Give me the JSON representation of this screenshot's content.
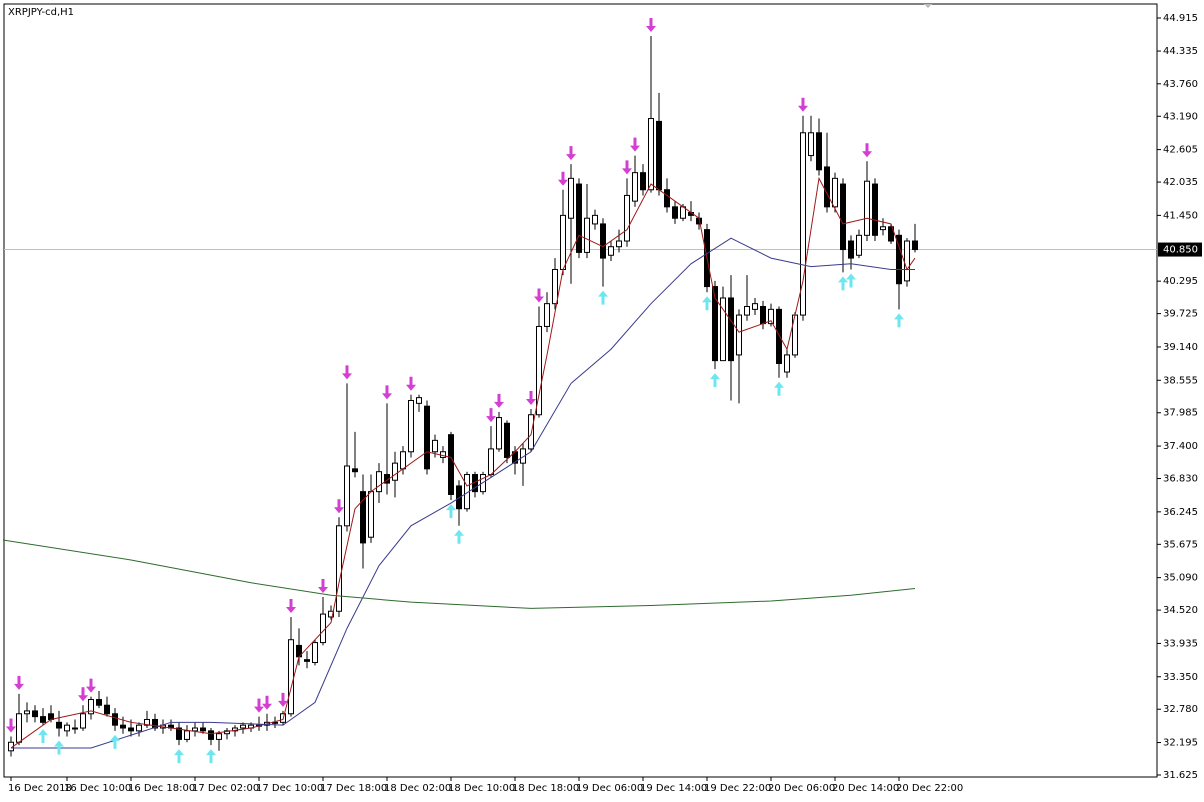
{
  "chart_data": {
    "type": "candlestick",
    "title": "XRPJPY-cd,H1",
    "categories": [
      "16 Dec 2018",
      null,
      null,
      null,
      null,
      null,
      null,
      "16 Dec 10:00",
      null,
      null,
      null,
      null,
      null,
      null,
      null,
      "16 Dec 18:00",
      null,
      null,
      null,
      null,
      null,
      null,
      null,
      "17 Dec 02:00",
      null,
      null,
      null,
      null,
      null,
      null,
      null,
      "17 Dec 10:00",
      null,
      null,
      null,
      null,
      null,
      null,
      null,
      "17 Dec 18:00",
      null,
      null,
      null,
      null,
      null,
      null,
      null,
      "18 Dec 02:00",
      null,
      null,
      null,
      null,
      null,
      null,
      null,
      "18 Dec 10:00",
      null,
      null,
      null,
      null,
      null,
      null,
      null,
      "18 Dec 18:00",
      null,
      null,
      null,
      null,
      null,
      null,
      null,
      "19 Dec 06:00",
      null,
      null,
      null,
      null,
      null,
      null,
      null,
      "19 Dec 14:00",
      null,
      null,
      null,
      null,
      null,
      null,
      null,
      "19 Dec 22:00",
      null,
      null,
      null,
      null,
      null,
      null,
      null,
      "20 Dec 06:00",
      null,
      null,
      null,
      null,
      null,
      null,
      null,
      "20 Dec 14:00",
      null,
      null,
      null,
      null,
      null,
      null,
      null,
      "20 Dec 22:00",
      null,
      null
    ],
    "open": [
      32.05,
      32.2,
      32.7,
      32.75,
      32.65,
      32.7,
      32.55,
      32.4,
      32.45,
      32.45,
      32.7,
      32.95,
      32.85,
      32.7,
      32.5,
      32.45,
      32.4,
      32.5,
      32.6,
      32.45,
      32.5,
      32.45,
      32.25,
      32.4,
      32.45,
      32.4,
      32.25,
      32.35,
      32.4,
      32.45,
      32.45,
      32.5,
      32.5,
      32.55,
      32.55,
      32.7,
      33.9,
      33.65,
      33.6,
      33.95,
      34.4,
      34.5,
      36.0,
      37.0,
      36.6,
      35.8,
      36.6,
      36.9,
      36.8,
      37.0,
      37.3,
      38.15,
      38.1,
      37.3,
      37.2,
      37.6,
      36.7,
      36.3,
      36.9,
      36.6,
      36.9,
      37.35,
      37.8,
      37.3,
      37.1,
      37.35,
      37.95,
      39.5,
      39.9,
      40.5,
      41.4,
      42.0,
      40.8,
      41.3,
      41.3,
      40.75,
      40.9,
      41.0,
      41.7,
      42.2,
      41.9,
      43.1,
      41.9,
      41.6,
      41.4,
      41.5,
      41.4,
      41.2,
      40.2,
      38.9,
      40.0,
      39.0,
      39.7,
      39.8,
      39.85,
      39.55,
      39.8,
      38.7,
      39.0,
      39.7,
      42.5,
      42.9,
      42.3,
      41.6,
      42.0,
      41.0,
      40.75,
      41.1,
      42.0,
      41.2,
      41.25,
      41.1,
      40.3,
      41.0
    ],
    "high": [
      32.3,
      33.05,
      32.9,
      32.85,
      32.8,
      32.85,
      32.75,
      32.55,
      32.6,
      32.85,
      33.0,
      33.1,
      33.0,
      32.8,
      32.65,
      32.6,
      32.55,
      32.75,
      32.7,
      32.6,
      32.6,
      32.55,
      32.5,
      32.55,
      32.55,
      32.45,
      32.4,
      32.45,
      32.5,
      32.55,
      32.55,
      32.65,
      32.7,
      32.65,
      32.75,
      34.4,
      34.2,
      33.8,
      34.0,
      34.75,
      34.6,
      36.15,
      38.5,
      37.65,
      36.9,
      36.9,
      37.1,
      38.15,
      37.3,
      37.4,
      38.3,
      38.3,
      38.2,
      37.6,
      37.4,
      37.65,
      36.8,
      36.95,
      36.95,
      36.95,
      37.75,
      38.0,
      37.85,
      37.4,
      37.45,
      38.05,
      39.85,
      40.1,
      40.7,
      41.9,
      42.35,
      42.1,
      42.0,
      41.55,
      41.4,
      41.0,
      41.2,
      42.1,
      42.5,
      42.35,
      44.6,
      43.6,
      42.1,
      41.7,
      41.65,
      41.7,
      41.5,
      41.3,
      40.3,
      40.2,
      40.4,
      39.8,
      40.4,
      40.0,
      39.95,
      39.9,
      39.85,
      39.1,
      39.75,
      43.2,
      43.2,
      43.15,
      42.9,
      42.2,
      42.1,
      41.1,
      41.2,
      42.4,
      42.1,
      41.4,
      41.3,
      41.2,
      41.05,
      41.3
    ],
    "low": [
      31.95,
      32.15,
      32.55,
      32.55,
      32.5,
      32.55,
      32.3,
      32.3,
      32.35,
      32.4,
      32.6,
      32.8,
      32.65,
      32.4,
      32.35,
      32.3,
      32.3,
      32.45,
      32.4,
      32.35,
      32.4,
      32.15,
      32.2,
      32.3,
      32.35,
      32.15,
      32.05,
      32.25,
      32.3,
      32.35,
      32.38,
      32.4,
      32.4,
      32.45,
      32.5,
      32.65,
      33.55,
      33.5,
      33.55,
      33.9,
      34.35,
      34.4,
      35.9,
      36.85,
      35.25,
      35.7,
      36.4,
      36.55,
      36.5,
      36.9,
      37.2,
      38.0,
      36.9,
      37.2,
      37.1,
      36.45,
      36.0,
      36.25,
      36.5,
      36.55,
      36.85,
      37.3,
      37.1,
      36.9,
      36.7,
      37.3,
      37.9,
      39.4,
      39.8,
      40.4,
      40.25,
      40.7,
      40.7,
      41.2,
      40.2,
      40.65,
      40.8,
      40.9,
      41.6,
      41.8,
      41.85,
      41.8,
      41.5,
      41.3,
      41.35,
      41.35,
      41.2,
      40.1,
      38.75,
      38.9,
      38.2,
      38.15,
      39.6,
      39.7,
      39.45,
      39.5,
      38.6,
      38.6,
      38.95,
      39.6,
      42.4,
      42.15,
      41.5,
      41.5,
      40.45,
      40.5,
      40.7,
      41.0,
      41.0,
      41.1,
      40.95,
      39.8,
      40.2,
      40.8
    ],
    "close": [
      32.2,
      32.7,
      32.75,
      32.65,
      32.55,
      32.6,
      32.45,
      32.5,
      32.45,
      32.7,
      32.95,
      32.85,
      32.7,
      32.5,
      32.45,
      32.4,
      32.5,
      32.6,
      32.45,
      32.5,
      32.45,
      32.25,
      32.4,
      32.45,
      32.4,
      32.25,
      32.35,
      32.4,
      32.45,
      32.5,
      32.5,
      32.5,
      32.55,
      32.55,
      32.7,
      34.0,
      33.7,
      33.62,
      33.95,
      34.45,
      34.5,
      36.0,
      37.05,
      36.95,
      35.7,
      36.6,
      36.95,
      36.75,
      37.1,
      37.3,
      38.2,
      38.25,
      37.0,
      37.5,
      37.3,
      36.55,
      36.3,
      36.9,
      36.6,
      36.9,
      37.35,
      37.9,
      37.2,
      37.1,
      37.35,
      37.95,
      39.5,
      39.9,
      40.5,
      41.45,
      42.1,
      40.8,
      41.4,
      41.45,
      40.7,
      40.9,
      41.0,
      41.8,
      42.2,
      41.9,
      43.15,
      41.9,
      41.6,
      41.4,
      41.6,
      41.45,
      41.3,
      40.2,
      38.9,
      40.0,
      38.9,
      39.7,
      39.85,
      39.9,
      39.55,
      39.8,
      38.85,
      39.0,
      39.7,
      42.9,
      42.9,
      42.25,
      41.6,
      42.1,
      40.85,
      40.7,
      41.1,
      42.05,
      41.1,
      41.25,
      41.0,
      40.25,
      41.0,
      40.85
    ],
    "lines": [
      {
        "color": "#a01818",
        "x": [
          0,
          5,
          10,
          15,
          20,
          25,
          30,
          34,
          36,
          40,
          41,
          43,
          45,
          48,
          52,
          55,
          57,
          60,
          63,
          65,
          67,
          69,
          71,
          74,
          77,
          80,
          82,
          86,
          88,
          91,
          95,
          97,
          99,
          101,
          104,
          107,
          110,
          112,
          113
        ],
        "values": [
          32.1,
          32.6,
          32.75,
          32.55,
          32.45,
          32.35,
          32.45,
          32.6,
          33.7,
          34.3,
          35.0,
          36.3,
          36.6,
          36.9,
          37.3,
          37.2,
          36.7,
          36.9,
          37.3,
          37.6,
          39.0,
          40.5,
          41.1,
          40.9,
          41.2,
          42.0,
          41.8,
          41.4,
          40.0,
          39.4,
          39.6,
          39.1,
          40.3,
          42.1,
          41.3,
          41.4,
          41.3,
          40.5,
          40.7
        ]
      },
      {
        "color": "#3a3a8c",
        "x": [
          0,
          10,
          20,
          25,
          34,
          38,
          42,
          46,
          50,
          55,
          60,
          65,
          70,
          75,
          80,
          85,
          90,
          95,
          100,
          105,
          110,
          113
        ],
        "values": [
          32.1,
          32.1,
          32.55,
          32.55,
          32.5,
          32.9,
          34.2,
          35.3,
          36.0,
          36.4,
          36.85,
          37.3,
          38.5,
          39.1,
          39.9,
          40.6,
          41.05,
          40.7,
          40.55,
          40.6,
          40.5,
          40.5
        ]
      },
      {
        "color": "#2e6b2e",
        "x": [
          -1,
          15,
          30,
          40,
          50,
          65,
          80,
          95,
          105,
          113
        ],
        "values": [
          35.75,
          35.4,
          35.0,
          34.78,
          34.66,
          34.55,
          34.6,
          34.68,
          34.78,
          34.9
        ]
      }
    ],
    "sell_signals": [
      0,
      1,
      9,
      10,
      31,
      32,
      34,
      35,
      39,
      41,
      42,
      47,
      50,
      60,
      61,
      65,
      66,
      69,
      70,
      77,
      78,
      80,
      99,
      107
    ],
    "buy_signals": [
      4,
      6,
      13,
      21,
      25,
      55,
      56,
      74,
      87,
      88,
      96,
      104,
      105,
      111
    ],
    "sell_color": "#d23fd2",
    "buy_color": "#6ee6f0",
    "bid": {
      "value": 40.85,
      "label": "40.850"
    },
    "ylim": [
      31.59,
      45.161
    ],
    "yticks": [
      44.915,
      44.335,
      {
        "value": 43.76,
        "label": "43.760"
      },
      {
        "value": 43.19,
        "label": "43.190"
      },
      42.605,
      42.035,
      {
        "value": 41.45,
        "label": "41.450"
      },
      40.295,
      39.725,
      {
        "value": 39.14,
        "label": "39.140"
      },
      38.555,
      37.985,
      {
        "value": 37.4,
        "label": "37.400"
      },
      {
        "value": 36.83,
        "label": "36.830"
      },
      36.245,
      35.675,
      {
        "value": 35.09,
        "label": "35.090"
      },
      {
        "value": 34.52,
        "label": "34.520"
      },
      33.935,
      {
        "value": 33.35,
        "label": "33.350"
      },
      {
        "value": 32.78,
        "label": "32.780"
      },
      32.195,
      31.625
    ]
  }
}
